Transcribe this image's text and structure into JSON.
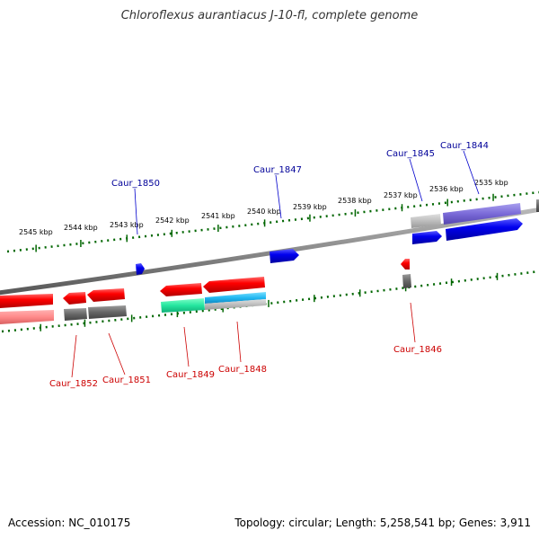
{
  "title": "Chloroflexus aurantiacus J-10-fl, complete genome",
  "footer": {
    "accession": "Accession: NC_010175",
    "info": "Topology: circular; Length: 5,258,541 bp; Genes: 3,911"
  },
  "colors": {
    "forward": "#0000ee",
    "reverse": "#ee0000",
    "forward_label": "#000099",
    "reverse_label": "#cc0000",
    "tick": "#006600",
    "backbone": "#888888"
  },
  "ticks": [
    "2545 kbp",
    "2544 kbp",
    "2543 kbp",
    "2542 kbp",
    "2541 kbp",
    "2540 kbp",
    "2539 kbp",
    "2538 kbp",
    "2537 kbp",
    "2536 kbp",
    "2535 kbp"
  ],
  "genes": {
    "forward": [
      "Caur_1850",
      "Caur_1847",
      "Caur_1845",
      "Caur_1844"
    ],
    "reverse": [
      "Caur_1852",
      "Caur_1851",
      "Caur_1849",
      "Caur_1848",
      "Caur_1846"
    ]
  }
}
